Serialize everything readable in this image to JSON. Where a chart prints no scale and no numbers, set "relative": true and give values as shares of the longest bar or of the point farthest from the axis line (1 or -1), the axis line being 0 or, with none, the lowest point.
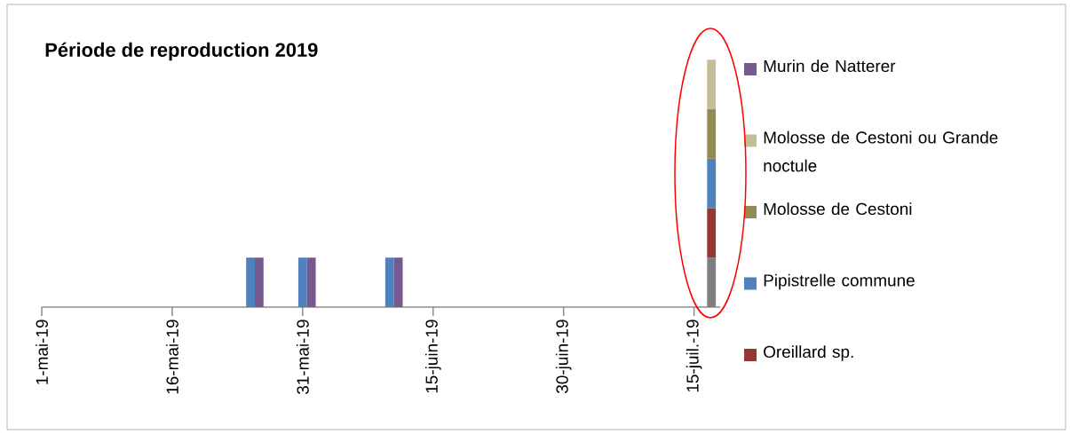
{
  "chart_data": {
    "type": "bar",
    "title": "Période de reproduction 2019",
    "relative": true,
    "stacked": true,
    "legend": "right",
    "xlim": [
      "2019-05-01",
      "2019-07-18"
    ],
    "xticks": [
      {
        "value": "2019-05-01",
        "label": "1-mai-19"
      },
      {
        "value": "2019-05-16",
        "label": "16-mai-19"
      },
      {
        "value": "2019-05-31",
        "label": "31-mai-19"
      },
      {
        "value": "2019-06-15",
        "label": "15-juin-19"
      },
      {
        "value": "2019-06-30",
        "label": "30-juin-19"
      },
      {
        "value": "2019-07-15",
        "label": "15-juil.-19"
      }
    ],
    "x": [
      "2019-05-25",
      "2019-05-26",
      "2019-05-31",
      "2019-06-01",
      "2019-06-10",
      "2019-06-11",
      "2019-07-17"
    ],
    "series": [
      {
        "color": "#7f7f7f",
        "values": [
          null,
          null,
          null,
          null,
          null,
          null,
          0.2
        ]
      },
      {
        "name": "Oreillard sp.",
        "color": "#953735",
        "values": [
          null,
          null,
          null,
          null,
          null,
          null,
          0.2
        ]
      },
      {
        "name": "Pipistrelle commune",
        "color": "#4f81bd",
        "values": [
          0.2,
          null,
          0.2,
          null,
          0.2,
          null,
          0.2
        ]
      },
      {
        "name": "Molosse de Cestoni",
        "color": "#948a54",
        "values": [
          null,
          null,
          null,
          null,
          null,
          null,
          0.2
        ]
      },
      {
        "name": "Molosse de Cestoni ou Grande noctule",
        "color": "#c4bd97",
        "values": [
          null,
          null,
          null,
          null,
          null,
          null,
          0.2
        ]
      },
      {
        "name": "Murin de Natterer",
        "color": "#76598f",
        "values": [
          null,
          0.2,
          null,
          0.2,
          null,
          0.2,
          null
        ]
      }
    ]
  }
}
